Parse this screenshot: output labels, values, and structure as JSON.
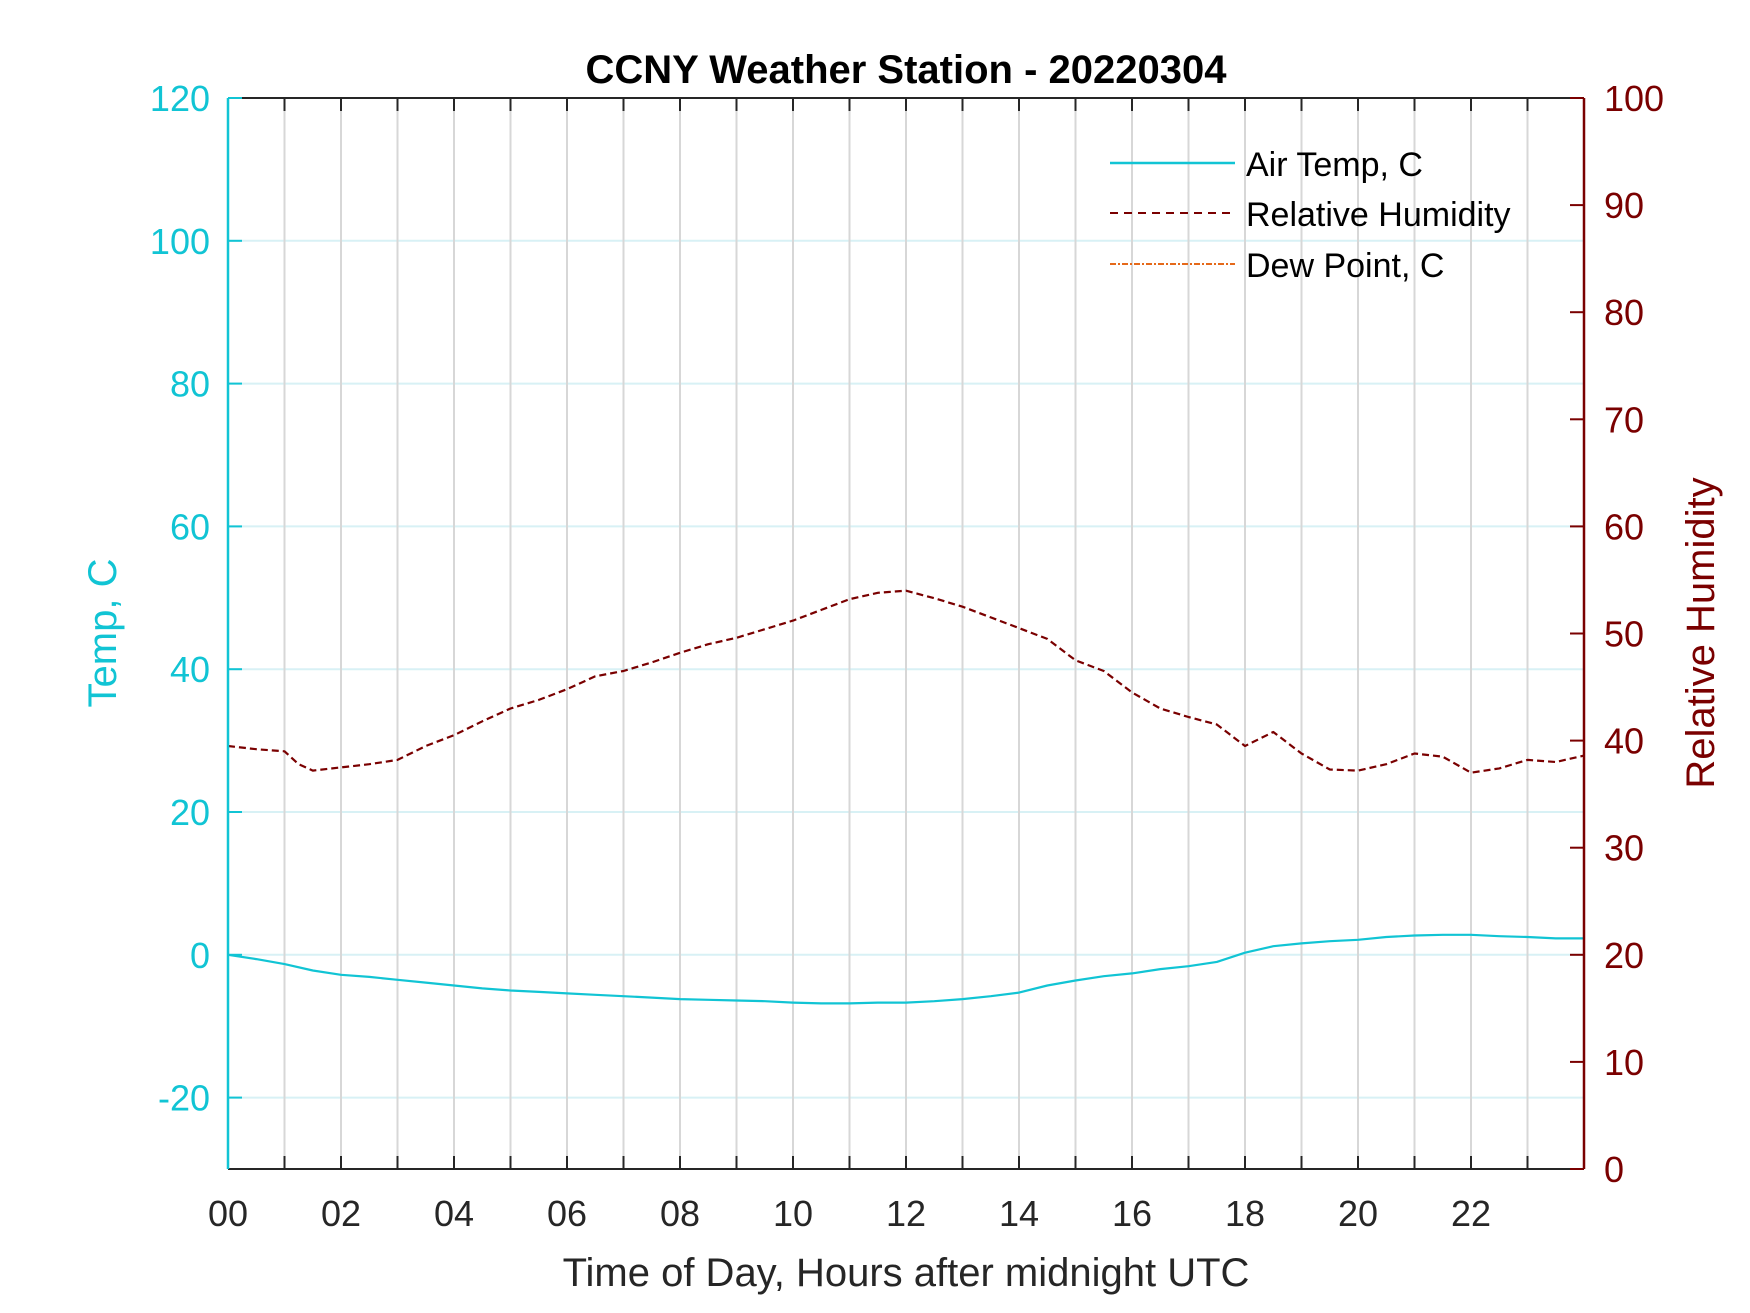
{
  "chart_data": {
    "type": "line",
    "title": "CCNY Weather Station - 20220304",
    "xlabel": "Time of Day, Hours after midnight UTC",
    "ylabel_left": "Temp, C",
    "ylabel_right": "Relative Humidity",
    "xlim": [
      0,
      24
    ],
    "ylim_left": [
      -30,
      120
    ],
    "ylim_right": [
      0,
      100
    ],
    "x_ticks": [
      "00",
      "02",
      "04",
      "06",
      "08",
      "10",
      "12",
      "14",
      "16",
      "18",
      "20",
      "22"
    ],
    "x_tick_values": [
      0,
      2,
      4,
      6,
      8,
      10,
      12,
      14,
      16,
      18,
      20,
      22
    ],
    "y_left_ticks": [
      -20,
      0,
      20,
      40,
      60,
      80,
      100,
      120
    ],
    "y_right_ticks": [
      0,
      10,
      20,
      30,
      40,
      50,
      60,
      70,
      80,
      90,
      100
    ],
    "grid": true,
    "legend_position": "top-right",
    "colors": {
      "temp": "#11c4d4",
      "humidity": "#7a0000",
      "dewpoint": "#e5691a",
      "grid_vertical": "#d7d7d7",
      "grid_horizontal": "#d8f1f5",
      "axis_dark": "#262626"
    },
    "series": [
      {
        "name": "Air Temp, C",
        "axis": "left",
        "style": "solid",
        "x": [
          0,
          0.5,
          1,
          1.5,
          2,
          2.5,
          3,
          3.5,
          4,
          4.5,
          5,
          5.5,
          6,
          6.5,
          7,
          7.5,
          8,
          8.5,
          9,
          9.5,
          10,
          10.5,
          11,
          11.5,
          12,
          12.5,
          13,
          13.5,
          14,
          14.5,
          15,
          15.5,
          16,
          16.5,
          17,
          17.5,
          18,
          18.5,
          19,
          19.5,
          20,
          20.5,
          21,
          21.5,
          22,
          22.5,
          23,
          23.5,
          24
        ],
        "values": [
          0,
          -0.6,
          -1.3,
          -2.2,
          -2.8,
          -3.1,
          -3.5,
          -3.9,
          -4.3,
          -4.7,
          -5,
          -5.2,
          -5.4,
          -5.6,
          -5.8,
          -6,
          -6.2,
          -6.3,
          -6.4,
          -6.5,
          -6.7,
          -6.8,
          -6.8,
          -6.7,
          -6.7,
          -6.5,
          -6.2,
          -5.8,
          -5.3,
          -4.3,
          -3.6,
          -3.0,
          -2.6,
          -2.0,
          -1.6,
          -1.0,
          0.3,
          1.2,
          1.6,
          1.9,
          2.1,
          2.5,
          2.7,
          2.8,
          2.8,
          2.6,
          2.5,
          2.3,
          2.3
        ]
      },
      {
        "name": "Relative Humidity",
        "axis": "right",
        "style": "dashed",
        "x": [
          0,
          0.5,
          1,
          1.25,
          1.5,
          2,
          2.5,
          3,
          3.5,
          4,
          4.5,
          5,
          5.5,
          6,
          6.5,
          7,
          7.5,
          8,
          8.5,
          9,
          9.5,
          10,
          10.5,
          11,
          11.5,
          12,
          12.5,
          13,
          13.5,
          14,
          14.5,
          15,
          15.5,
          16,
          16.5,
          17,
          17.5,
          18,
          18.5,
          19,
          19.5,
          20,
          20.5,
          21,
          21.5,
          22,
          22.5,
          23,
          23.5,
          24
        ],
        "values": [
          39.5,
          39.2,
          39,
          37.8,
          37.2,
          37.5,
          37.8,
          38.2,
          39.5,
          40.5,
          41.8,
          43,
          43.8,
          44.8,
          46,
          46.5,
          47.3,
          48.2,
          49,
          49.6,
          50.4,
          51.2,
          52.2,
          53.2,
          53.8,
          54,
          53.3,
          52.5,
          51.5,
          50.5,
          49.5,
          47.5,
          46.5,
          44.5,
          43,
          42.2,
          41.5,
          39.5,
          40.8,
          38.8,
          37.3,
          37.2,
          37.8,
          38.8,
          38.5,
          37,
          37.4,
          38.2,
          38,
          38.6
        ]
      },
      {
        "name": "Dew Point, C",
        "axis": "left",
        "style": "dashdot",
        "x": [],
        "values": []
      }
    ]
  }
}
